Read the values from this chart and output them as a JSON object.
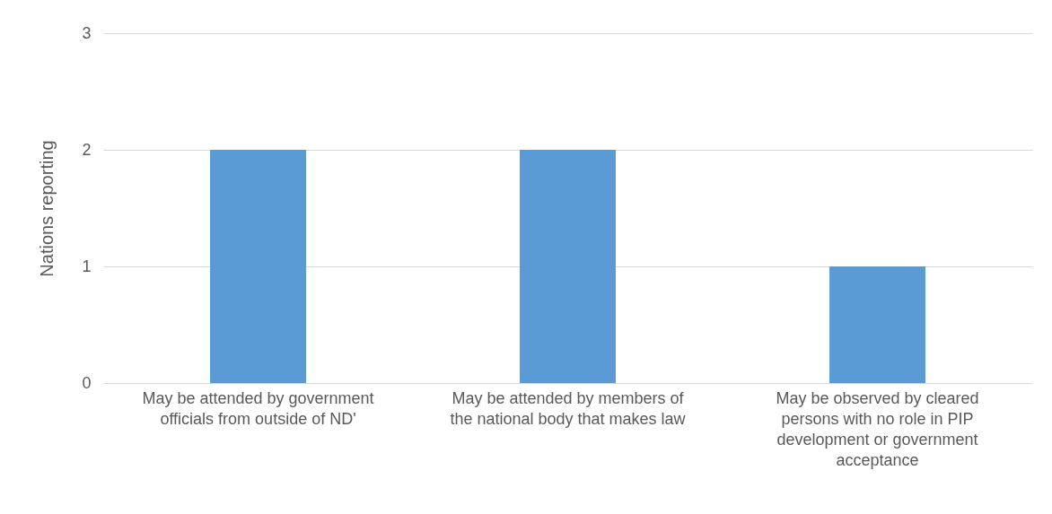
{
  "chart_data": {
    "type": "bar",
    "ylabel": "Nations reporting",
    "categories": [
      "May be attended by government officials from outside of ND'",
      "May be attended by members of the national body that makes law",
      "May be observed by cleared persons with no role in PIP development or government acceptance"
    ],
    "values": [
      2,
      2,
      1
    ],
    "color": "#5b9bd5",
    "ylim": [
      0,
      3
    ],
    "yticks": [
      0,
      1,
      2,
      3
    ],
    "grid": "y"
  }
}
